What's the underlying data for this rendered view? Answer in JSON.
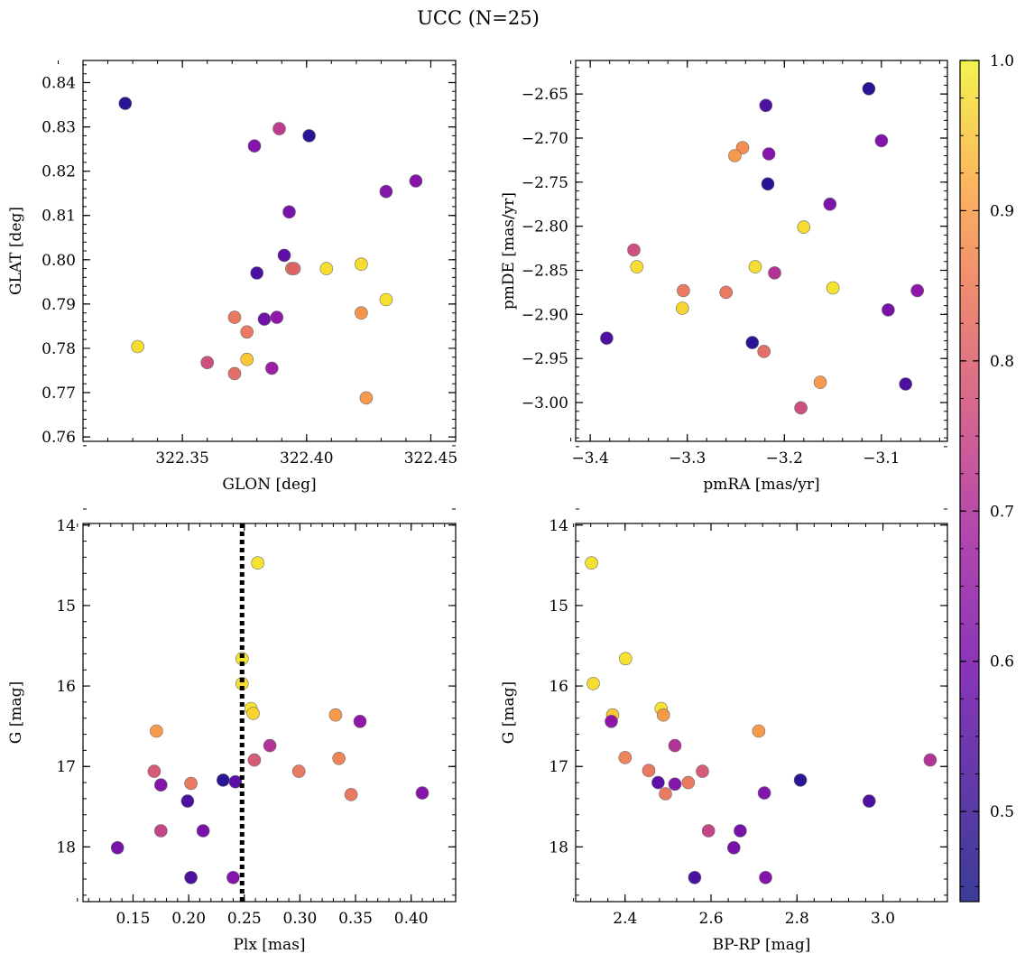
{
  "title": "UCC (N=25)",
  "colorbar": {
    "range": [
      0.44,
      1.0
    ],
    "ticks": [
      "0.5",
      "0.6",
      "0.7",
      "0.8",
      "0.9",
      "1.0"
    ],
    "tick_values": [
      0.5,
      0.6,
      0.7,
      0.8,
      0.9,
      1.0
    ],
    "colormap": "plasma"
  },
  "chart_data": [
    {
      "type": "scatter",
      "xlabel": "GLON [deg]",
      "ylabel": "GLAT [deg]",
      "xlim": [
        322.31,
        322.46
      ],
      "ylim": [
        0.759,
        0.845
      ],
      "yinvert": false,
      "xticks": [
        322.35,
        322.4,
        322.45
      ],
      "xtick_labels": [
        "322.35",
        "322.40",
        "322.45"
      ],
      "yticks": [
        0.76,
        0.77,
        0.78,
        0.79,
        0.8,
        0.81,
        0.82,
        0.83,
        0.84
      ],
      "ytick_labels": [
        "0.76",
        "0.77",
        "0.78",
        "0.79",
        "0.80",
        "0.81",
        "0.82",
        "0.83",
        "0.84"
      ],
      "points": [
        {
          "x": 322.327,
          "y": 0.8353,
          "c": 0.46
        },
        {
          "x": 322.401,
          "y": 0.828,
          "c": 0.46
        },
        {
          "x": 322.389,
          "y": 0.8296,
          "c": 0.68
        },
        {
          "x": 322.379,
          "y": 0.8257,
          "c": 0.58
        },
        {
          "x": 322.432,
          "y": 0.8154,
          "c": 0.58
        },
        {
          "x": 322.444,
          "y": 0.8178,
          "c": 0.58
        },
        {
          "x": 322.393,
          "y": 0.8108,
          "c": 0.56
        },
        {
          "x": 322.391,
          "y": 0.801,
          "c": 0.52
        },
        {
          "x": 322.38,
          "y": 0.797,
          "c": 0.5
        },
        {
          "x": 322.394,
          "y": 0.798,
          "c": 0.8
        },
        {
          "x": 322.395,
          "y": 0.798,
          "c": 0.77
        },
        {
          "x": 322.408,
          "y": 0.798,
          "c": 0.96
        },
        {
          "x": 322.422,
          "y": 0.799,
          "c": 0.96
        },
        {
          "x": 322.432,
          "y": 0.791,
          "c": 0.97
        },
        {
          "x": 322.422,
          "y": 0.788,
          "c": 0.85
        },
        {
          "x": 322.371,
          "y": 0.787,
          "c": 0.8
        },
        {
          "x": 322.383,
          "y": 0.7866,
          "c": 0.55
        },
        {
          "x": 322.388,
          "y": 0.787,
          "c": 0.6
        },
        {
          "x": 322.376,
          "y": 0.7837,
          "c": 0.8
        },
        {
          "x": 322.332,
          "y": 0.7804,
          "c": 0.96
        },
        {
          "x": 322.36,
          "y": 0.7768,
          "c": 0.72
        },
        {
          "x": 322.376,
          "y": 0.7775,
          "c": 0.93
        },
        {
          "x": 322.371,
          "y": 0.7743,
          "c": 0.78
        },
        {
          "x": 322.386,
          "y": 0.7755,
          "c": 0.62
        },
        {
          "x": 322.424,
          "y": 0.7688,
          "c": 0.86
        }
      ]
    },
    {
      "type": "scatter",
      "xlabel": "pmRA [mas/yr]",
      "ylabel": "pmDE [mas/yr]",
      "xlim": [
        -3.415,
        -3.032
      ],
      "ylim": [
        -3.044,
        -2.612
      ],
      "yinvert": false,
      "xticks": [
        -3.4,
        -3.3,
        -3.2,
        -3.1
      ],
      "xtick_labels": [
        "−3.4",
        "−3.3",
        "−3.2",
        "−3.1"
      ],
      "yticks": [
        -3.0,
        -2.95,
        -2.9,
        -2.85,
        -2.8,
        -2.75,
        -2.7,
        -2.65
      ],
      "ytick_labels": [
        "−3.00",
        "−2.95",
        "−2.90",
        "−2.85",
        "−2.80",
        "−2.75",
        "−2.70",
        "−2.65"
      ],
      "points": [
        {
          "x": -3.113,
          "y": -2.644,
          "c": 0.46
        },
        {
          "x": -3.219,
          "y": -2.663,
          "c": 0.5
        },
        {
          "x": -3.1,
          "y": -2.703,
          "c": 0.58
        },
        {
          "x": -3.216,
          "y": -2.718,
          "c": 0.58
        },
        {
          "x": -3.243,
          "y": -2.711,
          "c": 0.84
        },
        {
          "x": -3.251,
          "y": -2.72,
          "c": 0.86
        },
        {
          "x": -3.217,
          "y": -2.752,
          "c": 0.46
        },
        {
          "x": -3.153,
          "y": -2.775,
          "c": 0.57
        },
        {
          "x": -3.18,
          "y": -2.801,
          "c": 0.96
        },
        {
          "x": -3.355,
          "y": -2.827,
          "c": 0.72
        },
        {
          "x": -3.352,
          "y": -2.846,
          "c": 0.96
        },
        {
          "x": -3.23,
          "y": -2.846,
          "c": 0.96
        },
        {
          "x": -3.21,
          "y": -2.853,
          "c": 0.66
        },
        {
          "x": -3.15,
          "y": -2.87,
          "c": 0.97
        },
        {
          "x": -3.304,
          "y": -2.873,
          "c": 0.8
        },
        {
          "x": -3.26,
          "y": -2.875,
          "c": 0.8
        },
        {
          "x": -3.063,
          "y": -2.873,
          "c": 0.6
        },
        {
          "x": -3.305,
          "y": -2.893,
          "c": 0.95
        },
        {
          "x": -3.093,
          "y": -2.895,
          "c": 0.56
        },
        {
          "x": -3.383,
          "y": -2.927,
          "c": 0.5
        },
        {
          "x": -3.233,
          "y": -2.932,
          "c": 0.46
        },
        {
          "x": -3.221,
          "y": -2.942,
          "c": 0.78
        },
        {
          "x": -3.163,
          "y": -2.977,
          "c": 0.86
        },
        {
          "x": -3.075,
          "y": -2.979,
          "c": 0.5
        },
        {
          "x": -3.183,
          "y": -3.006,
          "c": 0.72
        }
      ]
    },
    {
      "type": "scatter",
      "xlabel": "Plx [mas]",
      "ylabel": "G [mag]",
      "xlim": [
        0.105,
        0.44
      ],
      "ylim": [
        18.68,
        13.98
      ],
      "yinvert": true,
      "xticks": [
        0.15,
        0.2,
        0.25,
        0.3,
        0.35,
        0.4
      ],
      "xtick_labels": [
        "0.15",
        "0.20",
        "0.25",
        "0.30",
        "0.35",
        "0.40"
      ],
      "yticks": [
        14,
        15,
        16,
        17,
        18
      ],
      "ytick_labels": [
        "14",
        "15",
        "16",
        "17",
        "18"
      ],
      "vline": 0.248,
      "points": [
        {
          "x": 0.262,
          "y": 14.47,
          "c": 0.97
        },
        {
          "x": 0.248,
          "y": 15.66,
          "c": 0.97
        },
        {
          "x": 0.248,
          "y": 15.97,
          "c": 0.96
        },
        {
          "x": 0.256,
          "y": 16.28,
          "c": 0.97
        },
        {
          "x": 0.258,
          "y": 16.34,
          "c": 0.95
        },
        {
          "x": 0.332,
          "y": 16.36,
          "c": 0.86
        },
        {
          "x": 0.354,
          "y": 16.44,
          "c": 0.6
        },
        {
          "x": 0.171,
          "y": 16.56,
          "c": 0.86
        },
        {
          "x": 0.273,
          "y": 16.74,
          "c": 0.66
        },
        {
          "x": 0.335,
          "y": 16.9,
          "c": 0.82
        },
        {
          "x": 0.259,
          "y": 16.92,
          "c": 0.74
        },
        {
          "x": 0.169,
          "y": 17.06,
          "c": 0.74
        },
        {
          "x": 0.299,
          "y": 17.06,
          "c": 0.8
        },
        {
          "x": 0.231,
          "y": 17.17,
          "c": 0.46
        },
        {
          "x": 0.242,
          "y": 17.19,
          "c": 0.52
        },
        {
          "x": 0.202,
          "y": 17.21,
          "c": 0.8
        },
        {
          "x": 0.175,
          "y": 17.23,
          "c": 0.58
        },
        {
          "x": 0.346,
          "y": 17.35,
          "c": 0.8
        },
        {
          "x": 0.41,
          "y": 17.33,
          "c": 0.58
        },
        {
          "x": 0.199,
          "y": 17.43,
          "c": 0.5
        },
        {
          "x": 0.175,
          "y": 17.8,
          "c": 0.7
        },
        {
          "x": 0.213,
          "y": 17.8,
          "c": 0.56
        },
        {
          "x": 0.136,
          "y": 18.01,
          "c": 0.56
        },
        {
          "x": 0.202,
          "y": 18.38,
          "c": 0.5
        },
        {
          "x": 0.24,
          "y": 18.38,
          "c": 0.58
        }
      ]
    },
    {
      "type": "scatter",
      "xlabel": "BP-RP [mag]",
      "ylabel": "G [mag]",
      "xlim": [
        2.285,
        3.15
      ],
      "ylim": [
        18.68,
        13.98
      ],
      "yinvert": true,
      "xticks": [
        2.4,
        2.6,
        2.8,
        3.0
      ],
      "xtick_labels": [
        "2.4",
        "2.6",
        "2.8",
        "3.0"
      ],
      "yticks": [
        14,
        15,
        16,
        17,
        18
      ],
      "ytick_labels": [
        "14",
        "15",
        "16",
        "17",
        "18"
      ],
      "points": [
        {
          "x": 2.322,
          "y": 14.47,
          "c": 0.97
        },
        {
          "x": 2.401,
          "y": 15.66,
          "c": 0.97
        },
        {
          "x": 2.326,
          "y": 15.97,
          "c": 0.96
        },
        {
          "x": 2.484,
          "y": 16.28,
          "c": 0.97
        },
        {
          "x": 2.489,
          "y": 16.36,
          "c": 0.86
        },
        {
          "x": 2.371,
          "y": 16.36,
          "c": 0.93
        },
        {
          "x": 2.368,
          "y": 16.44,
          "c": 0.6
        },
        {
          "x": 2.711,
          "y": 16.56,
          "c": 0.86
        },
        {
          "x": 2.516,
          "y": 16.74,
          "c": 0.66
        },
        {
          "x": 2.4,
          "y": 16.89,
          "c": 0.82
        },
        {
          "x": 3.11,
          "y": 16.92,
          "c": 0.66
        },
        {
          "x": 2.455,
          "y": 17.05,
          "c": 0.8
        },
        {
          "x": 2.58,
          "y": 17.06,
          "c": 0.74
        },
        {
          "x": 2.477,
          "y": 17.2,
          "c": 0.52
        },
        {
          "x": 2.516,
          "y": 17.22,
          "c": 0.58
        },
        {
          "x": 2.547,
          "y": 17.2,
          "c": 0.8
        },
        {
          "x": 2.808,
          "y": 17.17,
          "c": 0.46
        },
        {
          "x": 2.494,
          "y": 17.34,
          "c": 0.8
        },
        {
          "x": 2.724,
          "y": 17.33,
          "c": 0.58
        },
        {
          "x": 2.968,
          "y": 17.43,
          "c": 0.5
        },
        {
          "x": 2.594,
          "y": 17.8,
          "c": 0.7
        },
        {
          "x": 2.668,
          "y": 17.8,
          "c": 0.56
        },
        {
          "x": 2.653,
          "y": 18.01,
          "c": 0.56
        },
        {
          "x": 2.562,
          "y": 18.38,
          "c": 0.5
        },
        {
          "x": 2.727,
          "y": 18.38,
          "c": 0.58
        }
      ]
    }
  ]
}
